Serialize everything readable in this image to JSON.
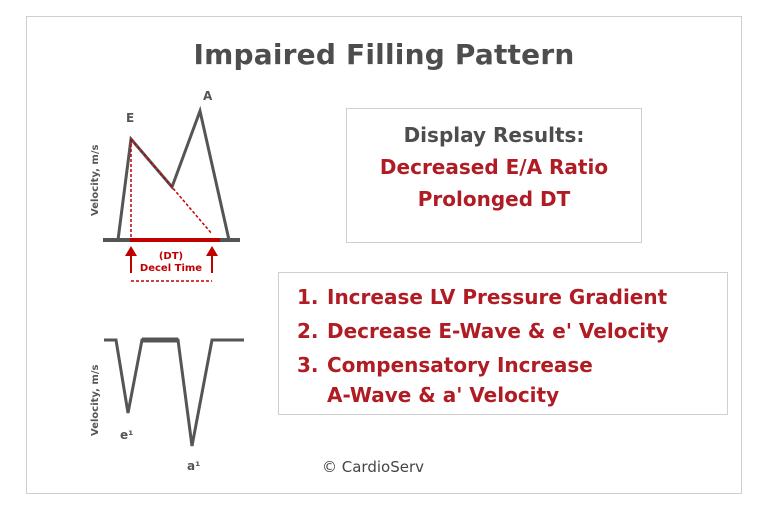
{
  "title": "Impaired Filling Pattern",
  "top_chart": {
    "ylabel": "Velocity, m/s",
    "peak_e": "E",
    "peak_a": "A",
    "dt_abbrev": "(DT)",
    "dt_label": "Decel Time"
  },
  "bottom_chart": {
    "ylabel": "Velocity, m/s",
    "peak_e": "e¹",
    "peak_a": "a¹"
  },
  "results": {
    "heading": "Display Results:",
    "line1": "Decreased E/A Ratio",
    "line2": "Prolonged DT"
  },
  "list": {
    "item1_num": "1.",
    "item1": "Increase LV Pressure Gradient",
    "item2_num": "2.",
    "item2": "Decrease E-Wave & e' Velocity",
    "item3_num": "3.",
    "item3_line1": "Compensatory Increase",
    "item3_line2": "A-Wave & a' Velocity"
  },
  "copyright": "© CardioServ",
  "colors": {
    "accent": "#b01c24",
    "gray": "#555555",
    "border": "#cfcfcf"
  }
}
